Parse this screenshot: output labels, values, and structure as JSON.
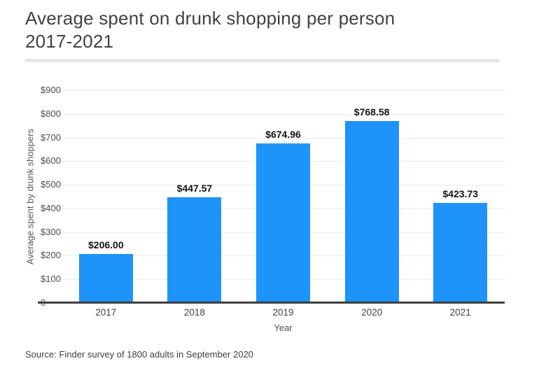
{
  "header": {
    "title_line1": "Average spent on drunk shopping per person",
    "title_line2": "2017-2021"
  },
  "footer": {
    "source": "Source: Finder survey of 1800 adults in September 2020"
  },
  "chart_data": {
    "type": "bar",
    "title": "Average spent on drunk shopping per person 2017-2021",
    "categories": [
      "2017",
      "2018",
      "2019",
      "2020",
      "2021"
    ],
    "values": [
      206.0,
      447.57,
      674.96,
      768.58,
      423.73
    ],
    "value_labels": [
      "$206.00",
      "$447.57",
      "$674.96",
      "$768.58",
      "$423.73"
    ],
    "xlabel": "Year",
    "ylabel": "Average spent by drunk shoppers",
    "ylim": [
      0,
      900
    ],
    "ytick_values": [
      0,
      100,
      200,
      300,
      400,
      500,
      600,
      700,
      800,
      900
    ],
    "ytick_labels": [
      "0",
      "$100",
      "$200",
      "$300",
      "$400",
      "$500",
      "$600",
      "$700",
      "$800",
      "$900"
    ],
    "grid": true,
    "legend": "none",
    "bar_color": "#1e93fa",
    "gridline_color": "#ebebeb",
    "axis_line_color": "#3f3f3f"
  }
}
